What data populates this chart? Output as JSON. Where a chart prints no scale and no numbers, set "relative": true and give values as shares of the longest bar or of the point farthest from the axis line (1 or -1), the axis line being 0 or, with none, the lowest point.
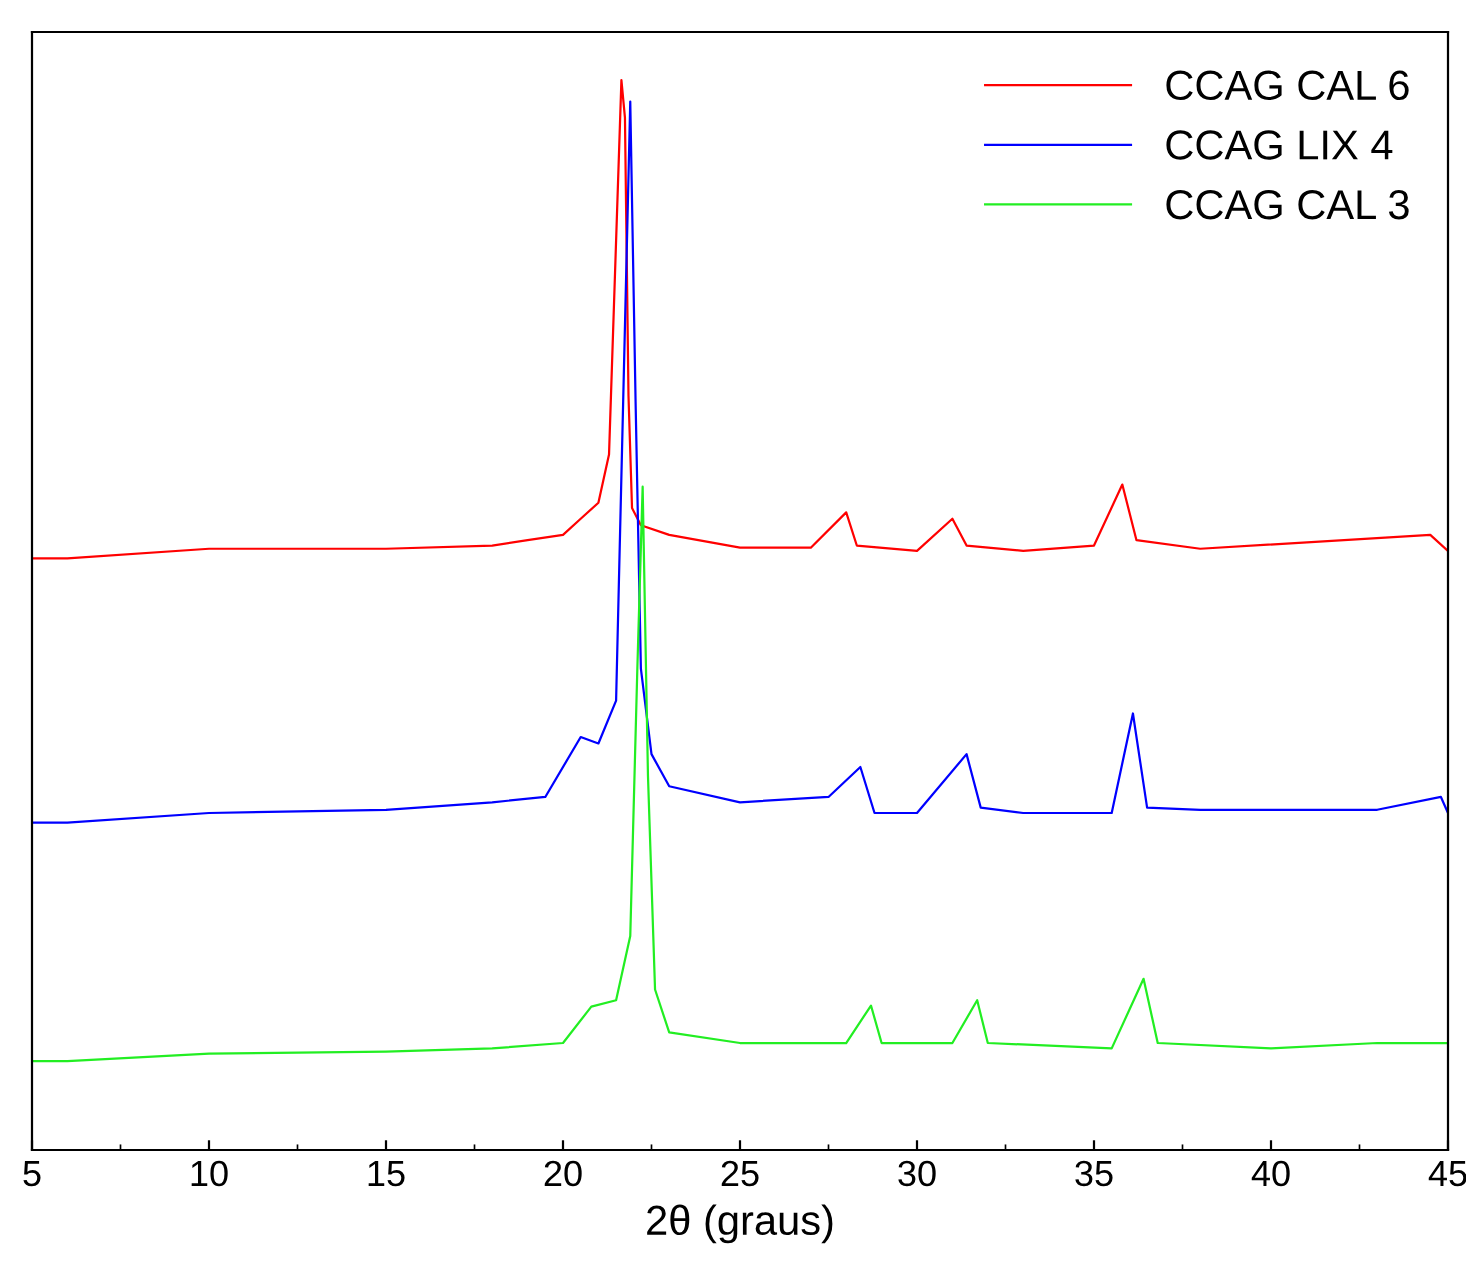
{
  "chart_data": {
    "type": "line",
    "relative": true,
    "xlabel": "2θ (graus)",
    "xlim": [
      5,
      45
    ],
    "xticks": [
      5,
      10,
      15,
      20,
      25,
      30,
      35,
      40,
      45
    ],
    "legend": "top right",
    "grid": false,
    "marker": "none",
    "line_style": "solid",
    "series": [
      {
        "name": "CCAG CAL 6",
        "color": "#ff0000",
        "x": [
          5,
          6,
          10,
          15,
          18,
          19,
          20,
          20.5,
          21,
          21.3,
          21.5,
          21.65,
          21.75,
          21.85,
          21.95,
          22.2,
          23,
          25,
          27,
          28,
          28.3,
          30,
          31,
          31.4,
          33,
          35,
          35.8,
          36.2,
          38,
          44.5,
          45
        ],
        "values": [
          0.553,
          0.553,
          0.562,
          0.562,
          0.565,
          0.57,
          0.575,
          0.59,
          0.605,
          0.65,
          0.85,
          1.0,
          0.965,
          0.705,
          0.6,
          0.584,
          0.575,
          0.563,
          0.563,
          0.596,
          0.565,
          0.56,
          0.59,
          0.565,
          0.56,
          0.565,
          0.622,
          0.57,
          0.562,
          0.575,
          0.56
        ]
      },
      {
        "name": "CCAG LIX 4",
        "color": "#0000ff",
        "x": [
          5,
          6,
          10,
          15,
          18,
          19.5,
          20.5,
          21,
          21.5,
          21.7,
          21.9,
          22.05,
          22.2,
          22.5,
          23,
          25,
          27.5,
          28.4,
          28.8,
          30,
          31.4,
          31.8,
          33,
          35.5,
          36.1,
          36.5,
          38,
          43,
          44.8,
          45
        ],
        "values": [
          0.306,
          0.306,
          0.315,
          0.318,
          0.325,
          0.33,
          0.386,
          0.38,
          0.42,
          0.7,
          0.98,
          0.7,
          0.45,
          0.37,
          0.34,
          0.325,
          0.33,
          0.358,
          0.315,
          0.315,
          0.37,
          0.32,
          0.315,
          0.315,
          0.408,
          0.32,
          0.318,
          0.318,
          0.33,
          0.315
        ]
      },
      {
        "name": "CCAG CAL 3",
        "color": "#22ee22",
        "x": [
          5,
          6,
          10,
          15,
          18,
          20,
          20.8,
          21.5,
          21.9,
          22.1,
          22.25,
          22.4,
          22.6,
          23,
          25,
          28,
          28.7,
          29,
          31,
          31.7,
          32,
          35.5,
          36.4,
          36.8,
          40,
          43,
          45
        ],
        "values": [
          0.083,
          0.083,
          0.09,
          0.092,
          0.095,
          0.1,
          0.134,
          0.14,
          0.2,
          0.45,
          0.62,
          0.35,
          0.15,
          0.11,
          0.1,
          0.1,
          0.135,
          0.1,
          0.1,
          0.14,
          0.1,
          0.095,
          0.16,
          0.1,
          0.095,
          0.1,
          0.1
        ]
      }
    ]
  }
}
